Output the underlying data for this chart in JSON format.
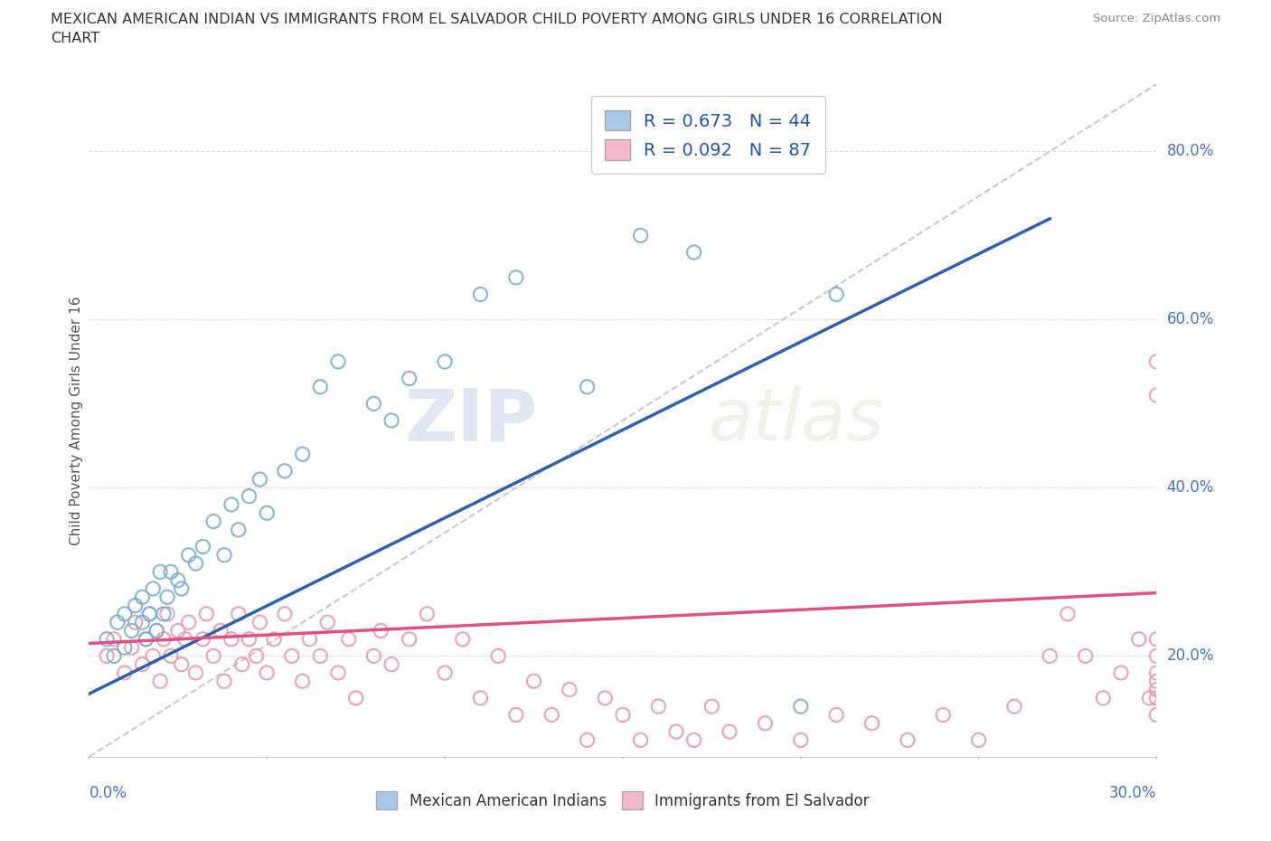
{
  "title_line1": "MEXICAN AMERICAN INDIAN VS IMMIGRANTS FROM EL SALVADOR CHILD POVERTY AMONG GIRLS UNDER 16 CORRELATION",
  "title_line2": "CHART",
  "source": "Source: ZipAtlas.com",
  "ylabel": "Child Poverty Among Girls Under 16",
  "ytick_labels": [
    "20.0%",
    "40.0%",
    "60.0%",
    "80.0%"
  ],
  "ytick_values": [
    0.2,
    0.4,
    0.6,
    0.8
  ],
  "xlim": [
    0.0,
    0.3
  ],
  "ylim": [
    0.08,
    0.88
  ],
  "legend1_r": "0.673",
  "legend1_n": "44",
  "legend2_r": "0.092",
  "legend2_n": "87",
  "blue_color": "#a8c8e8",
  "pink_color": "#f4b8c8",
  "blue_edge_color": "#7aaed0",
  "pink_edge_color": "#e898b0",
  "blue_line_color": "#3060b0",
  "pink_line_color": "#e05080",
  "legend_label1": "Mexican American Indians",
  "legend_label2": "Immigrants from El Salvador",
  "watermark_zip": "ZIP",
  "watermark_atlas": "atlas",
  "blue_scatter_x": [
    0.005,
    0.007,
    0.008,
    0.01,
    0.01,
    0.012,
    0.013,
    0.015,
    0.015,
    0.016,
    0.017,
    0.018,
    0.019,
    0.02,
    0.021,
    0.022,
    0.023,
    0.025,
    0.026,
    0.028,
    0.03,
    0.032,
    0.035,
    0.038,
    0.04,
    0.042,
    0.045,
    0.048,
    0.05,
    0.055,
    0.06,
    0.065,
    0.07,
    0.08,
    0.085,
    0.09,
    0.1,
    0.11,
    0.12,
    0.14,
    0.155,
    0.17,
    0.2,
    0.21
  ],
  "blue_scatter_y": [
    0.22,
    0.2,
    0.24,
    0.21,
    0.25,
    0.23,
    0.26,
    0.24,
    0.27,
    0.22,
    0.25,
    0.28,
    0.23,
    0.3,
    0.25,
    0.27,
    0.3,
    0.29,
    0.28,
    0.32,
    0.31,
    0.33,
    0.36,
    0.32,
    0.38,
    0.35,
    0.39,
    0.41,
    0.37,
    0.42,
    0.44,
    0.52,
    0.55,
    0.5,
    0.48,
    0.53,
    0.55,
    0.63,
    0.65,
    0.52,
    0.7,
    0.68,
    0.14,
    0.63
  ],
  "pink_scatter_x": [
    0.005,
    0.007,
    0.01,
    0.012,
    0.013,
    0.015,
    0.016,
    0.017,
    0.018,
    0.019,
    0.02,
    0.021,
    0.022,
    0.023,
    0.025,
    0.026,
    0.027,
    0.028,
    0.03,
    0.032,
    0.033,
    0.035,
    0.037,
    0.038,
    0.04,
    0.042,
    0.043,
    0.045,
    0.047,
    0.048,
    0.05,
    0.052,
    0.055,
    0.057,
    0.06,
    0.062,
    0.065,
    0.067,
    0.07,
    0.073,
    0.075,
    0.08,
    0.082,
    0.085,
    0.09,
    0.095,
    0.1,
    0.105,
    0.11,
    0.115,
    0.12,
    0.125,
    0.13,
    0.135,
    0.14,
    0.145,
    0.15,
    0.155,
    0.16,
    0.165,
    0.17,
    0.175,
    0.18,
    0.19,
    0.2,
    0.21,
    0.22,
    0.23,
    0.24,
    0.25,
    0.26,
    0.27,
    0.275,
    0.28,
    0.285,
    0.29,
    0.295,
    0.298,
    0.3,
    0.3,
    0.3,
    0.3,
    0.3,
    0.3,
    0.3,
    0.3,
    0.3
  ],
  "pink_scatter_y": [
    0.2,
    0.22,
    0.18,
    0.21,
    0.24,
    0.19,
    0.22,
    0.25,
    0.2,
    0.23,
    0.17,
    0.22,
    0.25,
    0.2,
    0.23,
    0.19,
    0.22,
    0.24,
    0.18,
    0.22,
    0.25,
    0.2,
    0.23,
    0.17,
    0.22,
    0.25,
    0.19,
    0.22,
    0.2,
    0.24,
    0.18,
    0.22,
    0.25,
    0.2,
    0.17,
    0.22,
    0.2,
    0.24,
    0.18,
    0.22,
    0.15,
    0.2,
    0.23,
    0.19,
    0.22,
    0.25,
    0.18,
    0.22,
    0.15,
    0.2,
    0.13,
    0.17,
    0.13,
    0.16,
    0.1,
    0.15,
    0.13,
    0.1,
    0.14,
    0.11,
    0.1,
    0.14,
    0.11,
    0.12,
    0.1,
    0.13,
    0.12,
    0.1,
    0.13,
    0.1,
    0.14,
    0.2,
    0.25,
    0.2,
    0.15,
    0.18,
    0.22,
    0.15,
    0.51,
    0.55,
    0.22,
    0.18,
    0.15,
    0.2,
    0.16,
    0.13,
    0.17
  ],
  "blue_trend_x": [
    0.0,
    0.27
  ],
  "blue_trend_y": [
    0.155,
    0.72
  ],
  "pink_trend_x": [
    0.0,
    0.3
  ],
  "pink_trend_y": [
    0.215,
    0.275
  ],
  "ref_line_x": [
    0.0,
    0.3
  ],
  "ref_line_y": [
    0.08,
    0.88
  ]
}
